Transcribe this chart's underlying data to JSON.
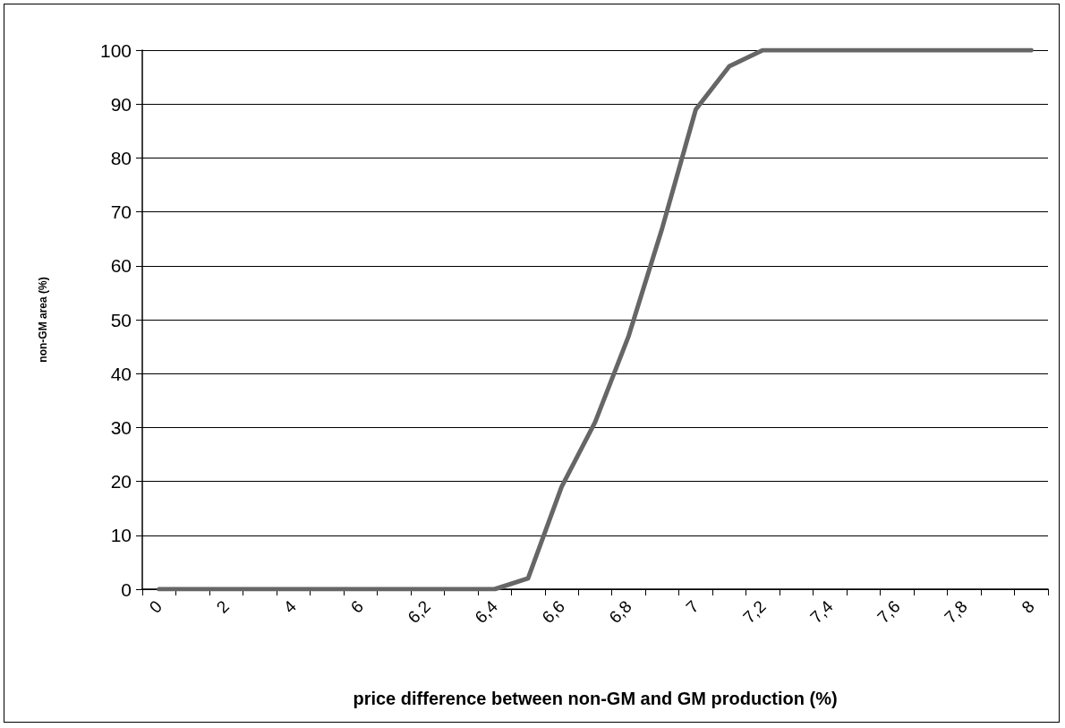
{
  "chart_data": {
    "type": "line",
    "xlabel": "price difference between non-GM and GM production (%)",
    "ylabel": "non-GM area (%)",
    "categories": [
      "0",
      null,
      "2",
      null,
      "4",
      null,
      "6",
      null,
      "6,2",
      null,
      "6,4",
      null,
      "6,6",
      null,
      "6,8",
      null,
      "7",
      null,
      "7,2",
      null,
      "7,4",
      null,
      "7,6",
      null,
      "7,8",
      null,
      "8"
    ],
    "series": [
      {
        "color": "#666666",
        "values": [
          0,
          0,
          0,
          0,
          0,
          0,
          0,
          0,
          0,
          0,
          0,
          2,
          19,
          31,
          47,
          67,
          89,
          97,
          100,
          100,
          100,
          100,
          100,
          100,
          100,
          100,
          100
        ]
      }
    ],
    "ylim": [
      0,
      100
    ],
    "yticks": [
      0,
      10,
      20,
      30,
      40,
      50,
      60,
      70,
      80,
      90,
      100
    ],
    "grid": "y",
    "marker": "none",
    "line_style": "solid"
  }
}
